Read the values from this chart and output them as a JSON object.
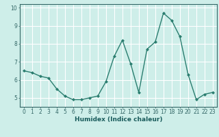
{
  "x": [
    0,
    1,
    2,
    3,
    4,
    5,
    6,
    7,
    8,
    9,
    10,
    11,
    12,
    13,
    14,
    15,
    16,
    17,
    18,
    19,
    20,
    21,
    22,
    23
  ],
  "y": [
    6.5,
    6.4,
    6.2,
    6.1,
    5.5,
    5.1,
    4.9,
    4.9,
    5.0,
    5.1,
    5.9,
    7.3,
    8.2,
    6.9,
    5.3,
    7.7,
    8.1,
    9.7,
    9.3,
    8.4,
    6.3,
    4.9,
    5.2,
    5.3
  ],
  "line_color": "#2a7d6f",
  "marker": "D",
  "marker_size": 2.0,
  "linewidth": 1.0,
  "xlabel": "Humidex (Indice chaleur)",
  "ylim": [
    4.5,
    10.2
  ],
  "xlim": [
    -0.5,
    23.5
  ],
  "yticks": [
    5,
    6,
    7,
    8,
    9,
    10
  ],
  "xticks": [
    0,
    1,
    2,
    3,
    4,
    5,
    6,
    7,
    8,
    9,
    10,
    11,
    12,
    13,
    14,
    15,
    16,
    17,
    18,
    19,
    20,
    21,
    22,
    23
  ],
  "bg_color": "#ceeee9",
  "grid_color": "#ffffff",
  "axis_color": "#336666",
  "xlabel_fontsize": 6.5,
  "tick_fontsize": 5.5,
  "xlabel_color": "#1a5c5c"
}
